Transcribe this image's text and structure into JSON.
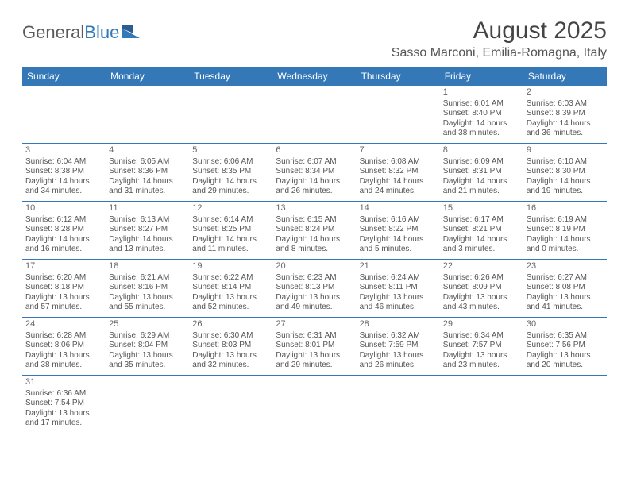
{
  "logo": {
    "text1": "General",
    "text2": "Blue"
  },
  "title": "August 2025",
  "location": "Sasso Marconi, Emilia-Romagna, Italy",
  "colors": {
    "header_bg": "#3478b8",
    "header_text": "#ffffff",
    "rule": "#3478b8",
    "text": "#555555"
  },
  "weekdays": [
    "Sunday",
    "Monday",
    "Tuesday",
    "Wednesday",
    "Thursday",
    "Friday",
    "Saturday"
  ],
  "weeks": [
    [
      null,
      null,
      null,
      null,
      null,
      {
        "d": "1",
        "sr": "Sunrise: 6:01 AM",
        "ss": "Sunset: 8:40 PM",
        "dl1": "Daylight: 14 hours",
        "dl2": "and 38 minutes."
      },
      {
        "d": "2",
        "sr": "Sunrise: 6:03 AM",
        "ss": "Sunset: 8:39 PM",
        "dl1": "Daylight: 14 hours",
        "dl2": "and 36 minutes."
      }
    ],
    [
      {
        "d": "3",
        "sr": "Sunrise: 6:04 AM",
        "ss": "Sunset: 8:38 PM",
        "dl1": "Daylight: 14 hours",
        "dl2": "and 34 minutes."
      },
      {
        "d": "4",
        "sr": "Sunrise: 6:05 AM",
        "ss": "Sunset: 8:36 PM",
        "dl1": "Daylight: 14 hours",
        "dl2": "and 31 minutes."
      },
      {
        "d": "5",
        "sr": "Sunrise: 6:06 AM",
        "ss": "Sunset: 8:35 PM",
        "dl1": "Daylight: 14 hours",
        "dl2": "and 29 minutes."
      },
      {
        "d": "6",
        "sr": "Sunrise: 6:07 AM",
        "ss": "Sunset: 8:34 PM",
        "dl1": "Daylight: 14 hours",
        "dl2": "and 26 minutes."
      },
      {
        "d": "7",
        "sr": "Sunrise: 6:08 AM",
        "ss": "Sunset: 8:32 PM",
        "dl1": "Daylight: 14 hours",
        "dl2": "and 24 minutes."
      },
      {
        "d": "8",
        "sr": "Sunrise: 6:09 AM",
        "ss": "Sunset: 8:31 PM",
        "dl1": "Daylight: 14 hours",
        "dl2": "and 21 minutes."
      },
      {
        "d": "9",
        "sr": "Sunrise: 6:10 AM",
        "ss": "Sunset: 8:30 PM",
        "dl1": "Daylight: 14 hours",
        "dl2": "and 19 minutes."
      }
    ],
    [
      {
        "d": "10",
        "sr": "Sunrise: 6:12 AM",
        "ss": "Sunset: 8:28 PM",
        "dl1": "Daylight: 14 hours",
        "dl2": "and 16 minutes."
      },
      {
        "d": "11",
        "sr": "Sunrise: 6:13 AM",
        "ss": "Sunset: 8:27 PM",
        "dl1": "Daylight: 14 hours",
        "dl2": "and 13 minutes."
      },
      {
        "d": "12",
        "sr": "Sunrise: 6:14 AM",
        "ss": "Sunset: 8:25 PM",
        "dl1": "Daylight: 14 hours",
        "dl2": "and 11 minutes."
      },
      {
        "d": "13",
        "sr": "Sunrise: 6:15 AM",
        "ss": "Sunset: 8:24 PM",
        "dl1": "Daylight: 14 hours",
        "dl2": "and 8 minutes."
      },
      {
        "d": "14",
        "sr": "Sunrise: 6:16 AM",
        "ss": "Sunset: 8:22 PM",
        "dl1": "Daylight: 14 hours",
        "dl2": "and 5 minutes."
      },
      {
        "d": "15",
        "sr": "Sunrise: 6:17 AM",
        "ss": "Sunset: 8:21 PM",
        "dl1": "Daylight: 14 hours",
        "dl2": "and 3 minutes."
      },
      {
        "d": "16",
        "sr": "Sunrise: 6:19 AM",
        "ss": "Sunset: 8:19 PM",
        "dl1": "Daylight: 14 hours",
        "dl2": "and 0 minutes."
      }
    ],
    [
      {
        "d": "17",
        "sr": "Sunrise: 6:20 AM",
        "ss": "Sunset: 8:18 PM",
        "dl1": "Daylight: 13 hours",
        "dl2": "and 57 minutes."
      },
      {
        "d": "18",
        "sr": "Sunrise: 6:21 AM",
        "ss": "Sunset: 8:16 PM",
        "dl1": "Daylight: 13 hours",
        "dl2": "and 55 minutes."
      },
      {
        "d": "19",
        "sr": "Sunrise: 6:22 AM",
        "ss": "Sunset: 8:14 PM",
        "dl1": "Daylight: 13 hours",
        "dl2": "and 52 minutes."
      },
      {
        "d": "20",
        "sr": "Sunrise: 6:23 AM",
        "ss": "Sunset: 8:13 PM",
        "dl1": "Daylight: 13 hours",
        "dl2": "and 49 minutes."
      },
      {
        "d": "21",
        "sr": "Sunrise: 6:24 AM",
        "ss": "Sunset: 8:11 PM",
        "dl1": "Daylight: 13 hours",
        "dl2": "and 46 minutes."
      },
      {
        "d": "22",
        "sr": "Sunrise: 6:26 AM",
        "ss": "Sunset: 8:09 PM",
        "dl1": "Daylight: 13 hours",
        "dl2": "and 43 minutes."
      },
      {
        "d": "23",
        "sr": "Sunrise: 6:27 AM",
        "ss": "Sunset: 8:08 PM",
        "dl1": "Daylight: 13 hours",
        "dl2": "and 41 minutes."
      }
    ],
    [
      {
        "d": "24",
        "sr": "Sunrise: 6:28 AM",
        "ss": "Sunset: 8:06 PM",
        "dl1": "Daylight: 13 hours",
        "dl2": "and 38 minutes."
      },
      {
        "d": "25",
        "sr": "Sunrise: 6:29 AM",
        "ss": "Sunset: 8:04 PM",
        "dl1": "Daylight: 13 hours",
        "dl2": "and 35 minutes."
      },
      {
        "d": "26",
        "sr": "Sunrise: 6:30 AM",
        "ss": "Sunset: 8:03 PM",
        "dl1": "Daylight: 13 hours",
        "dl2": "and 32 minutes."
      },
      {
        "d": "27",
        "sr": "Sunrise: 6:31 AM",
        "ss": "Sunset: 8:01 PM",
        "dl1": "Daylight: 13 hours",
        "dl2": "and 29 minutes."
      },
      {
        "d": "28",
        "sr": "Sunrise: 6:32 AM",
        "ss": "Sunset: 7:59 PM",
        "dl1": "Daylight: 13 hours",
        "dl2": "and 26 minutes."
      },
      {
        "d": "29",
        "sr": "Sunrise: 6:34 AM",
        "ss": "Sunset: 7:57 PM",
        "dl1": "Daylight: 13 hours",
        "dl2": "and 23 minutes."
      },
      {
        "d": "30",
        "sr": "Sunrise: 6:35 AM",
        "ss": "Sunset: 7:56 PM",
        "dl1": "Daylight: 13 hours",
        "dl2": "and 20 minutes."
      }
    ],
    [
      {
        "d": "31",
        "sr": "Sunrise: 6:36 AM",
        "ss": "Sunset: 7:54 PM",
        "dl1": "Daylight: 13 hours",
        "dl2": "and 17 minutes."
      },
      null,
      null,
      null,
      null,
      null,
      null
    ]
  ]
}
